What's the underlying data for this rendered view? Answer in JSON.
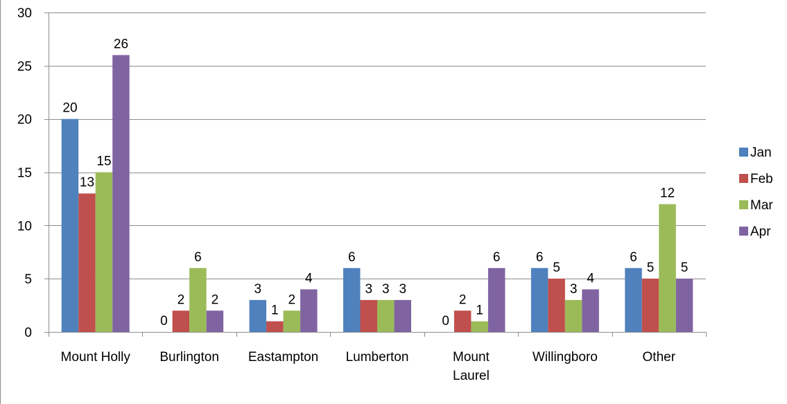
{
  "chart_data": {
    "type": "bar",
    "title": "",
    "xlabel": "",
    "ylabel": "",
    "categories": [
      "Mount Holly",
      "Burlington",
      "Eastampton",
      "Lumberton",
      "Mount\nLaurel",
      "Willingboro",
      "Other"
    ],
    "ylim": [
      0,
      30
    ],
    "yticks": [
      0,
      5,
      10,
      15,
      20,
      25,
      30
    ],
    "grid": true,
    "legend_position": "right",
    "series": [
      {
        "name": "Jan",
        "color": "#4f81bd",
        "values": [
          20,
          0,
          3,
          6,
          0,
          6,
          6
        ]
      },
      {
        "name": "Feb",
        "color": "#c0504d",
        "values": [
          13,
          2,
          1,
          3,
          2,
          5,
          5
        ]
      },
      {
        "name": "Mar",
        "color": "#9bbb59",
        "values": [
          15,
          6,
          2,
          3,
          1,
          3,
          12
        ]
      },
      {
        "name": "Apr",
        "color": "#8064a2",
        "values": [
          26,
          2,
          4,
          3,
          6,
          4,
          5
        ]
      }
    ]
  }
}
